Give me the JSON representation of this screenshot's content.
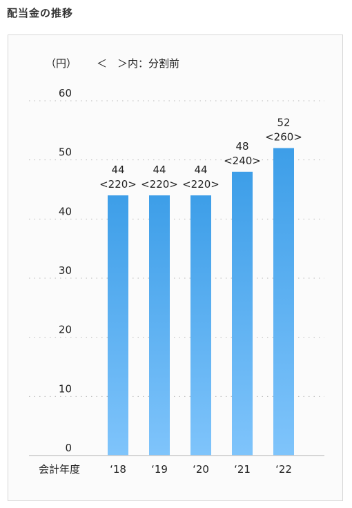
{
  "page_title": "配当金の推移",
  "chart_data": {
    "type": "bar",
    "unit_label": "（円）",
    "legend_note": "＜　＞内：分割前",
    "xlabel": "会計年度",
    "categories": [
      "‘18",
      "‘19",
      "‘20",
      "‘21",
      "‘22"
    ],
    "series": [
      {
        "values": [
          44,
          44,
          44,
          48,
          52
        ]
      }
    ],
    "pre_split_values": [
      "<220>",
      "<220>",
      "<220>",
      "<240>",
      "<260>"
    ],
    "y_ticks": [
      "0",
      "10",
      "20",
      "30",
      "40",
      "50",
      "60"
    ],
    "ylim": [
      0,
      60
    ],
    "grid": true,
    "grid_style": "dotted",
    "bar_color_top": "#3d9ee8",
    "bar_color_bottom": "#7fc4fb"
  }
}
